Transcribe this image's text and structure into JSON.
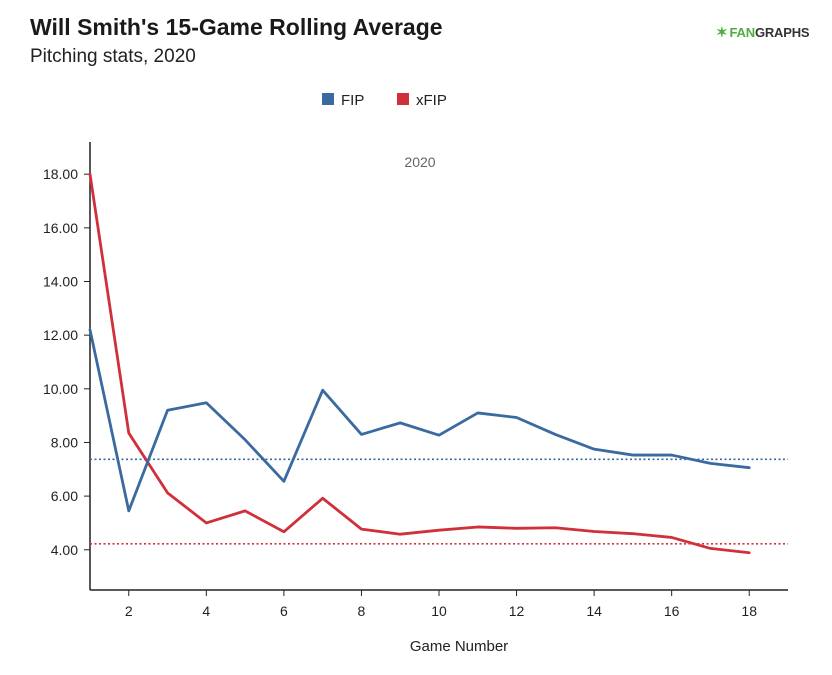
{
  "header": {
    "title": "Will Smith's 15-Game Rolling Average",
    "subtitle": "Pitching stats, 2020",
    "logo_text_fan": "FAN",
    "logo_text_graphs": "GRAPHS"
  },
  "colors": {
    "fip": "#3a6aa0",
    "xfip": "#d0303a",
    "axis": "#222222",
    "season_label": "#666666"
  },
  "chart_data": {
    "type": "line",
    "title": "Will Smith's 15-Game Rolling Average",
    "subtitle": "Pitching stats, 2020",
    "season_label": "2020",
    "xlabel": "Game Number",
    "ylabel": "",
    "x": [
      1,
      2,
      3,
      4,
      5,
      6,
      7,
      8,
      9,
      10,
      11,
      12,
      13,
      14,
      15,
      16,
      17,
      18
    ],
    "xlim": [
      1,
      19
    ],
    "ylim": [
      2.5,
      19.2
    ],
    "x_ticks": [
      2,
      4,
      6,
      8,
      10,
      12,
      14,
      16,
      18
    ],
    "x_tick_labels": [
      "2",
      "4",
      "6",
      "8",
      "10",
      "12",
      "14",
      "16",
      "18"
    ],
    "y_ticks": [
      4,
      6,
      8,
      10,
      12,
      14,
      16,
      18
    ],
    "y_tick_labels": [
      "4.00",
      "6.00",
      "8.00",
      "10.00",
      "12.00",
      "14.00",
      "16.00",
      "18.00"
    ],
    "grid": false,
    "legend_position": "top-center",
    "series": [
      {
        "name": "FIP",
        "values": [
          12.2,
          5.45,
          9.2,
          9.48,
          8.1,
          6.55,
          9.95,
          8.3,
          8.73,
          8.27,
          9.1,
          8.93,
          8.3,
          7.75,
          7.53,
          7.53,
          7.22,
          7.06
        ],
        "reference_line": 7.37
      },
      {
        "name": "xFIP",
        "values": [
          18.0,
          8.35,
          6.12,
          5.0,
          5.45,
          4.67,
          5.92,
          4.77,
          4.58,
          4.73,
          4.85,
          4.8,
          4.82,
          4.68,
          4.6,
          4.46,
          4.05,
          3.89
        ],
        "reference_line": 4.22
      }
    ]
  }
}
